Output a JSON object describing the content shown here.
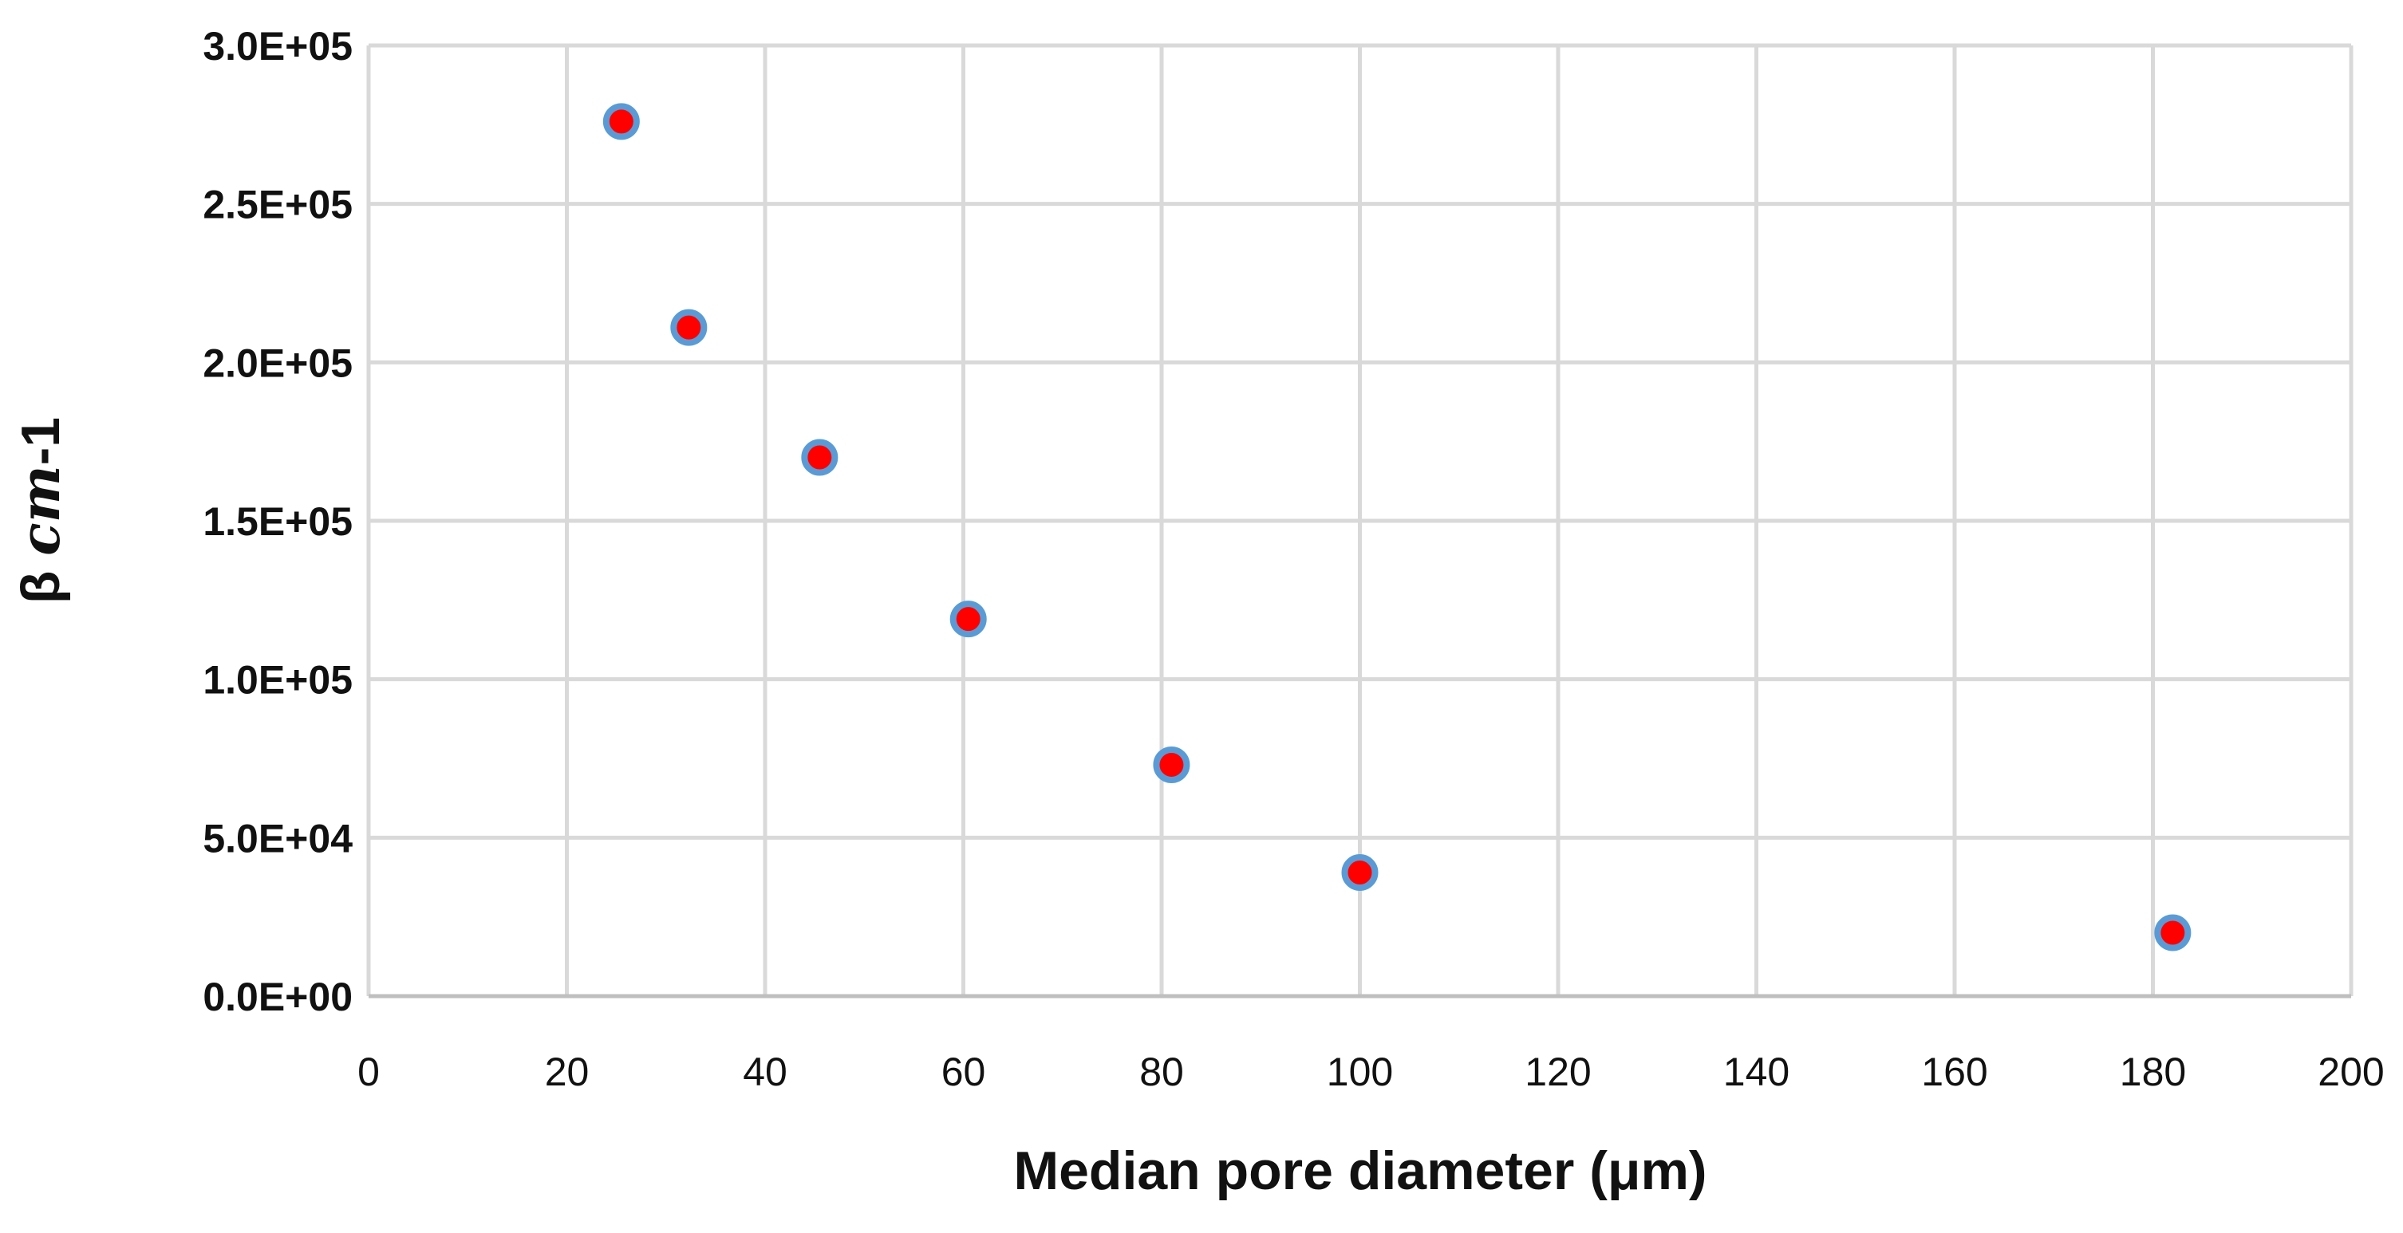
{
  "chart_data": {
    "type": "scatter",
    "title": "",
    "xlabel": "Median pore diameter (μm)",
    "ylabel": {
      "prefix": "β ",
      "unit": "cm",
      "suffix": "-1"
    },
    "xlim": [
      0,
      200
    ],
    "ylim": [
      0,
      300000
    ],
    "x_ticks": [
      "0",
      "20",
      "40",
      "60",
      "80",
      "100",
      "120",
      "140",
      "160",
      "180",
      "200"
    ],
    "y_ticks": [
      "0.0E+00",
      "5.0E+04",
      "1.0E+05",
      "1.5E+05",
      "2.0E+05",
      "2.5E+05",
      "3.0E+05"
    ],
    "grid": true,
    "legend": "none",
    "colors": {
      "marker_fill": "#ff0000",
      "marker_edge": "#5b9bd5",
      "grid": "#d9d9d9",
      "axis": "#bfbfbf"
    },
    "series": [
      {
        "points": [
          {
            "x": 25.5,
            "y": 276000
          },
          {
            "x": 32.3,
            "y": 211000
          },
          {
            "x": 45.5,
            "y": 170000
          },
          {
            "x": 60.5,
            "y": 119000
          },
          {
            "x": 81.0,
            "y": 73000
          },
          {
            "x": 100.0,
            "y": 39000
          },
          {
            "x": 182.0,
            "y": 20000
          }
        ]
      }
    ]
  }
}
